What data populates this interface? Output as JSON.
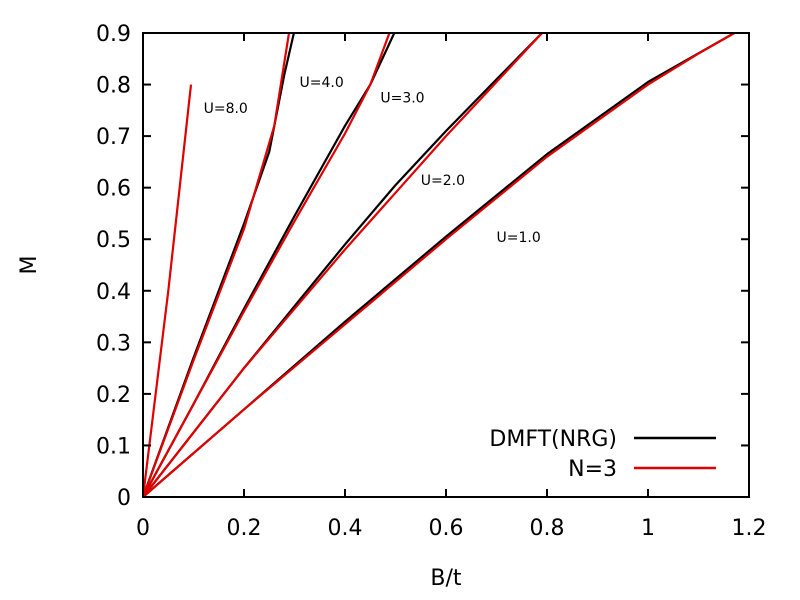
{
  "chart_data": {
    "type": "line",
    "xlabel": "B/t",
    "ylabel": "M",
    "xlim": [
      0,
      1.2
    ],
    "ylim": [
      0,
      0.9
    ],
    "xticks": [
      0,
      0.2,
      0.4,
      0.6,
      0.8,
      1,
      1.2
    ],
    "xtick_labels": [
      "0",
      "0.2",
      "0.4",
      "0.6",
      "0.8",
      "1",
      "1.2"
    ],
    "yticks": [
      0,
      0.1,
      0.2,
      0.3,
      0.4,
      0.5,
      0.6,
      0.7,
      0.8,
      0.9
    ],
    "ytick_labels": [
      "0",
      "0.1",
      "0.2",
      "0.3",
      "0.4",
      "0.5",
      "0.6",
      "0.7",
      "0.8",
      "0.9"
    ],
    "grid": false,
    "legend_position": "bottom-right",
    "legend": [
      {
        "name": "DMFT(NRG)",
        "color": "#000000"
      },
      {
        "name": "N=3",
        "color": "#e00000"
      }
    ],
    "series": [
      {
        "group": "DMFT(NRG)",
        "color": "#000000",
        "curve": "U=1.0",
        "points": [
          [
            0,
            0
          ],
          [
            0.2,
            0.17
          ],
          [
            0.4,
            0.34
          ],
          [
            0.6,
            0.505
          ],
          [
            0.8,
            0.665
          ],
          [
            1.0,
            0.805
          ],
          [
            1.18,
            0.905
          ]
        ]
      },
      {
        "group": "DMFT(NRG)",
        "color": "#000000",
        "curve": "U=2.0",
        "points": [
          [
            0,
            0
          ],
          [
            0.1,
            0.125
          ],
          [
            0.2,
            0.25
          ],
          [
            0.3,
            0.37
          ],
          [
            0.4,
            0.49
          ],
          [
            0.5,
            0.605
          ],
          [
            0.6,
            0.71
          ],
          [
            0.7,
            0.81
          ],
          [
            0.79,
            0.9
          ]
        ]
      },
      {
        "group": "DMFT(NRG)",
        "color": "#000000",
        "curve": "U=3.0",
        "points": [
          [
            0,
            0
          ],
          [
            0.1,
            0.18
          ],
          [
            0.2,
            0.365
          ],
          [
            0.3,
            0.545
          ],
          [
            0.4,
            0.72
          ],
          [
            0.45,
            0.8
          ],
          [
            0.5,
            0.905
          ]
        ]
      },
      {
        "group": "DMFT(NRG)",
        "color": "#000000",
        "curve": "U=4.0",
        "points": [
          [
            0,
            0
          ],
          [
            0.1,
            0.27
          ],
          [
            0.2,
            0.53
          ],
          [
            0.25,
            0.67
          ],
          [
            0.28,
            0.82
          ],
          [
            0.3,
            0.905
          ]
        ]
      },
      {
        "group": "N=3",
        "color": "#e00000",
        "curve": "U=1.0",
        "points": [
          [
            0,
            0
          ],
          [
            0.2,
            0.17
          ],
          [
            0.4,
            0.335
          ],
          [
            0.6,
            0.5
          ],
          [
            0.8,
            0.66
          ],
          [
            1.0,
            0.8
          ],
          [
            1.1,
            0.86
          ],
          [
            1.18,
            0.905
          ]
        ]
      },
      {
        "group": "N=3",
        "color": "#e00000",
        "curve": "U=2.0",
        "points": [
          [
            0,
            0
          ],
          [
            0.1,
            0.125
          ],
          [
            0.2,
            0.25
          ],
          [
            0.3,
            0.365
          ],
          [
            0.4,
            0.48
          ],
          [
            0.5,
            0.59
          ],
          [
            0.6,
            0.7
          ],
          [
            0.7,
            0.805
          ],
          [
            0.79,
            0.9
          ]
        ]
      },
      {
        "group": "N=3",
        "color": "#e00000",
        "curve": "U=3.0",
        "points": [
          [
            0,
            0
          ],
          [
            0.1,
            0.18
          ],
          [
            0.2,
            0.36
          ],
          [
            0.3,
            0.535
          ],
          [
            0.4,
            0.705
          ],
          [
            0.45,
            0.8
          ],
          [
            0.49,
            0.905
          ]
        ]
      },
      {
        "group": "N=3",
        "color": "#e00000",
        "curve": "U=4.0",
        "points": [
          [
            0,
            0
          ],
          [
            0.1,
            0.265
          ],
          [
            0.2,
            0.52
          ],
          [
            0.26,
            0.72
          ],
          [
            0.29,
            0.905
          ]
        ]
      },
      {
        "group": "N=3",
        "color": "#e00000",
        "curve": "U=8.0",
        "points": [
          [
            0,
            0
          ],
          [
            0.05,
            0.4
          ],
          [
            0.095,
            0.8
          ]
        ]
      }
    ],
    "annotations": [
      {
        "text": "U=8.0",
        "x": 0.12,
        "y": 0.745
      },
      {
        "text": "U=4.0",
        "x": 0.31,
        "y": 0.795
      },
      {
        "text": "U=3.0",
        "x": 0.47,
        "y": 0.765
      },
      {
        "text": "U=2.0",
        "x": 0.55,
        "y": 0.605
      },
      {
        "text": "U=1.0",
        "x": 0.7,
        "y": 0.495
      }
    ]
  }
}
